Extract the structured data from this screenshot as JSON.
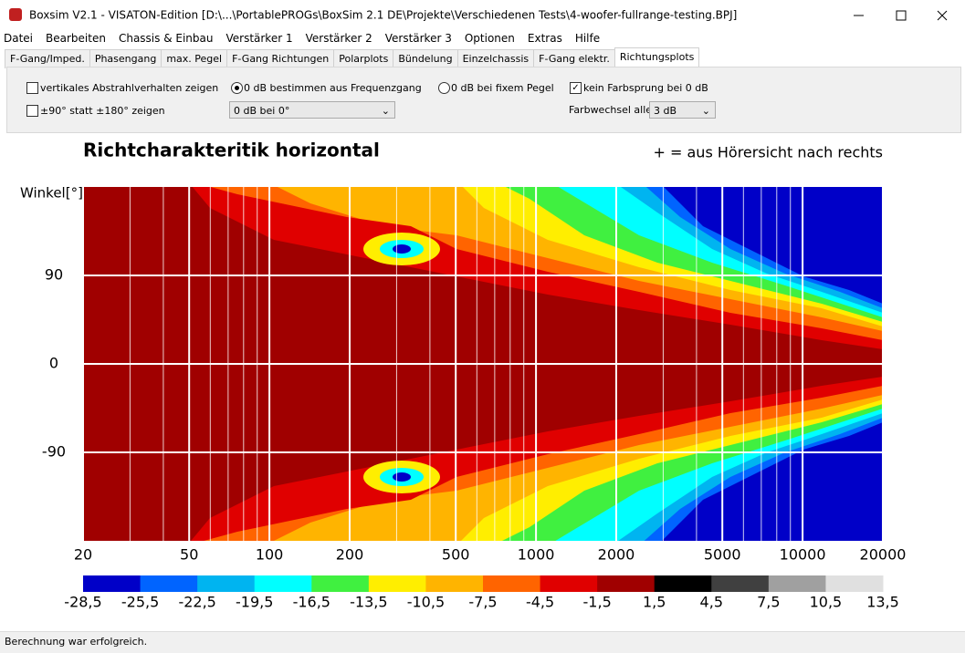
{
  "window": {
    "title": "Boxsim V2.1 - VISATON-Edition [D:\\...\\PortablePROGs\\BoxSim 2.1 DE\\Projekte\\Verschiedenen Tests\\4-woofer-fullrange-testing.BPJ]"
  },
  "menu": [
    "Datei",
    "Bearbeiten",
    "Chassis & Einbau",
    "Verstärker 1",
    "Verstärker 2",
    "Verstärker 3",
    "Optionen",
    "Extras",
    "Hilfe"
  ],
  "tabs": [
    "F-Gang/Imped.",
    "Phasengang",
    "max. Pegel",
    "F-Gang Richtungen",
    "Polarplots",
    "Bündelung",
    "Einzelchassis",
    "F-Gang elektr.",
    "Richtungsplots"
  ],
  "active_tab": 8,
  "options": {
    "vertical": {
      "label": "vertikales Abstrahlverhalten zeigen",
      "checked": false
    },
    "range90": {
      "label": "±90° statt ±180° zeigen",
      "checked": false
    },
    "from_response": {
      "label": "0 dB bestimmen aus Frequenzgang",
      "selected": true
    },
    "reference": "0 dB bei 0°",
    "fixed_level": {
      "label": "0 dB bei fixem Pegel",
      "selected": false
    },
    "no_jump": {
      "label": "kein Farbsprung bei 0 dB",
      "checked": true
    },
    "color_step_label": "Farbwechsel  alle",
    "color_step": "3 dB"
  },
  "chart_data": {
    "type": "heatmap",
    "title": "Richtcharakteritik horizontal",
    "annotation": "+ = aus Hörersicht nach rechts",
    "y_label": "Winkel[°]",
    "x_scale": "log",
    "xlim": [
      20,
      20000
    ],
    "xticks": [
      20,
      50,
      100,
      200,
      500,
      1000,
      2000,
      5000,
      10000,
      20000
    ],
    "x_minor_ticks": [
      30,
      40,
      60,
      70,
      80,
      90,
      300,
      400,
      600,
      700,
      800,
      900,
      3000,
      4000,
      6000,
      7000,
      8000,
      9000
    ],
    "ylim": [
      -180,
      180
    ],
    "yticks": [
      -90,
      0,
      90
    ],
    "grid": true,
    "colorbar": {
      "colors": [
        "#0000c8",
        "#0064ff",
        "#00b4f0",
        "#00ffff",
        "#40f040",
        "#ffee00",
        "#ffb400",
        "#ff6400",
        "#e00000",
        "#a00000",
        "#000000",
        "#404040",
        "#a0a0a0",
        "#e0e0e0"
      ],
      "ticks": [
        {
          "value": -28.5,
          "label": "-28,5"
        },
        {
          "value": -25.5,
          "label": "-25,5"
        },
        {
          "value": -22.5,
          "label": "-22,5"
        },
        {
          "value": -19.5,
          "label": "-19,5"
        },
        {
          "value": -16.5,
          "label": "-16,5"
        },
        {
          "value": -13.5,
          "label": "-13,5"
        },
        {
          "value": -10.5,
          "label": "-10,5"
        },
        {
          "value": -7.5,
          "label": "-7,5"
        },
        {
          "value": -4.5,
          "label": "-4,5"
        },
        {
          "value": -1.5,
          "label": "-1,5"
        },
        {
          "value": 1.5,
          "label": "1,5"
        },
        {
          "value": 4.5,
          "label": "4,5"
        },
        {
          "value": 7.5,
          "label": "7,5"
        },
        {
          "value": 10.5,
          "label": "10,5"
        },
        {
          "value": 13.5,
          "label": "13,5"
        }
      ]
    }
  },
  "status": "Berechnung war erfolgreich."
}
